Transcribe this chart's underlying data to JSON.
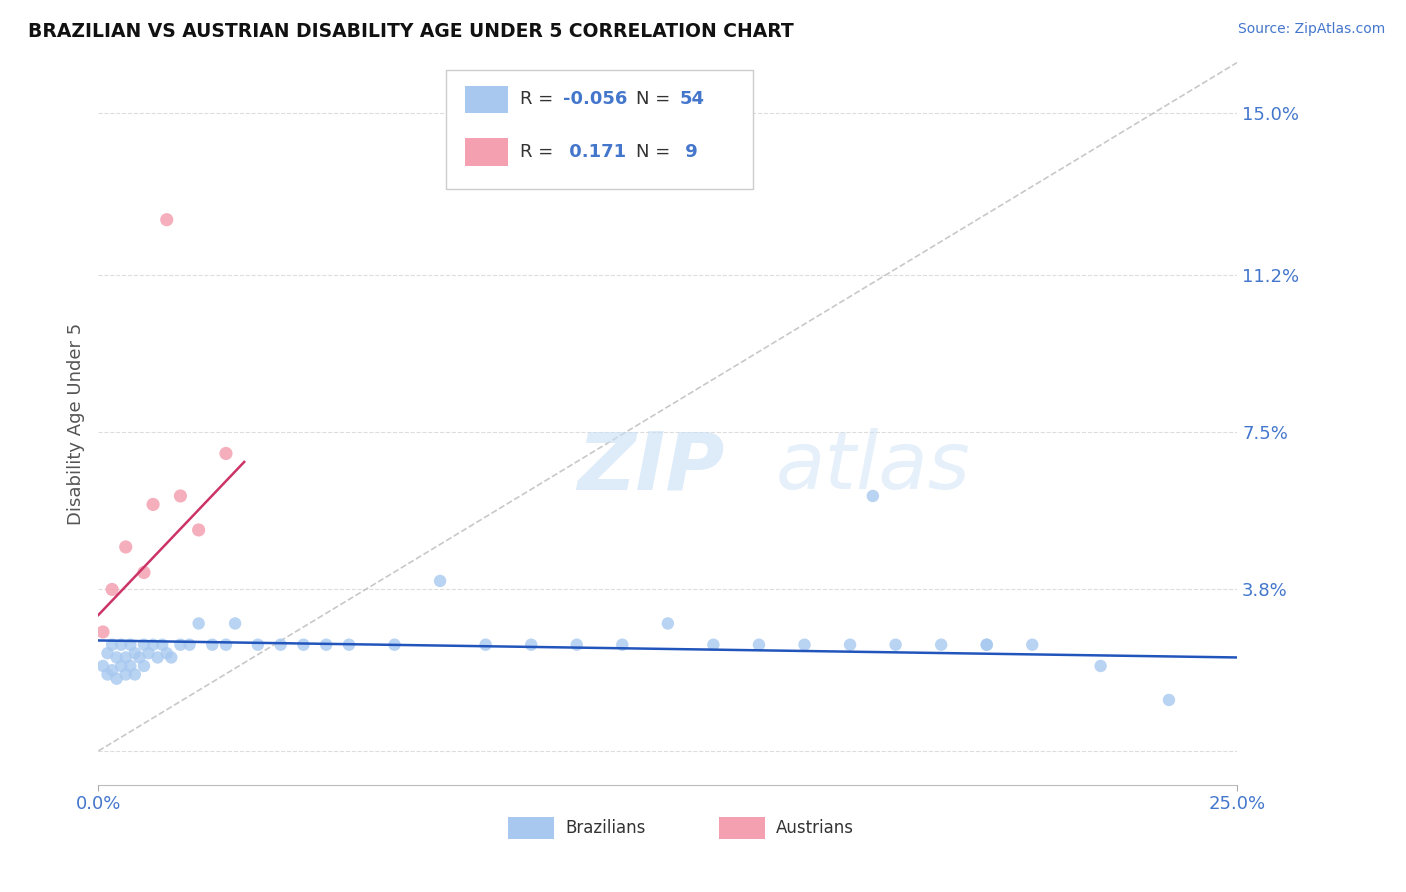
{
  "title": "BRAZILIAN VS AUSTRIAN DISABILITY AGE UNDER 5 CORRELATION CHART",
  "source": "Source: ZipAtlas.com",
  "ylabel": "Disability Age Under 5",
  "ytick_values": [
    0.0,
    0.038,
    0.075,
    0.112,
    0.15
  ],
  "ytick_labels": [
    "0.0%",
    "3.8%",
    "7.5%",
    "11.2%",
    "15.0%"
  ],
  "xmin": 0.0,
  "xmax": 0.25,
  "ymin": -0.008,
  "ymax": 0.162,
  "color_brazilian": "#a8c8f0",
  "color_austrian": "#f4a0b0",
  "color_trend_brazilian": "#2255bb",
  "color_trend_austrian": "#cc3366",
  "color_diagonal": "#bbbbbb",
  "color_grid": "#dddddd",
  "color_title": "#111111",
  "color_axis_blue": "#4477cc",
  "color_axis_labels_tick": "#4477cc",
  "watermark_zip": "ZIP",
  "watermark_atlas": "atlas",
  "brazilians_x": [
    0.001,
    0.002,
    0.002,
    0.003,
    0.003,
    0.004,
    0.004,
    0.005,
    0.005,
    0.006,
    0.006,
    0.007,
    0.007,
    0.008,
    0.008,
    0.009,
    0.01,
    0.01,
    0.011,
    0.012,
    0.013,
    0.014,
    0.015,
    0.016,
    0.018,
    0.02,
    0.022,
    0.025,
    0.028,
    0.03,
    0.035,
    0.04,
    0.045,
    0.05,
    0.055,
    0.065,
    0.075,
    0.085,
    0.095,
    0.105,
    0.115,
    0.125,
    0.135,
    0.145,
    0.155,
    0.165,
    0.175,
    0.185,
    0.195,
    0.205,
    0.17,
    0.195,
    0.22,
    0.235
  ],
  "brazilians_y": [
    0.02,
    0.023,
    0.018,
    0.025,
    0.019,
    0.022,
    0.017,
    0.025,
    0.02,
    0.022,
    0.018,
    0.025,
    0.02,
    0.023,
    0.018,
    0.022,
    0.025,
    0.02,
    0.023,
    0.025,
    0.022,
    0.025,
    0.023,
    0.022,
    0.025,
    0.025,
    0.03,
    0.025,
    0.025,
    0.03,
    0.025,
    0.025,
    0.025,
    0.025,
    0.025,
    0.025,
    0.04,
    0.025,
    0.025,
    0.025,
    0.025,
    0.03,
    0.025,
    0.025,
    0.025,
    0.025,
    0.025,
    0.025,
    0.025,
    0.025,
    0.06,
    0.025,
    0.02,
    0.012
  ],
  "austrians_x": [
    0.001,
    0.003,
    0.006,
    0.01,
    0.012,
    0.015,
    0.018,
    0.022,
    0.028
  ],
  "austrians_y": [
    0.028,
    0.038,
    0.048,
    0.042,
    0.058,
    0.125,
    0.06,
    0.052,
    0.07
  ],
  "trend_b_x0": 0.0,
  "trend_b_x1": 0.25,
  "trend_b_y0": 0.026,
  "trend_b_y1": 0.022,
  "trend_a_x0": 0.0,
  "trend_a_x1": 0.032,
  "trend_a_y0": 0.032,
  "trend_a_y1": 0.068
}
